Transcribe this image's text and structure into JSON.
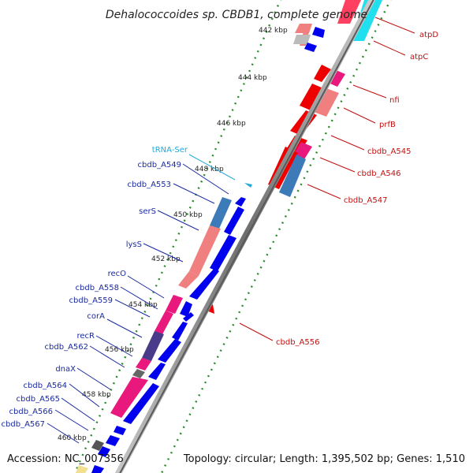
{
  "header": {
    "title": "Dehalococcoides sp. CBDB1, complete genome"
  },
  "footer": {
    "accession": "Accession: NC_007356",
    "topology": "Topology: circular; Length: 1,395,502 bp; Genes: 1,510"
  },
  "colors": {
    "backbone": "#8a8a8a",
    "forward_gene": "#0000ee",
    "reverse_gene": "#ee0000",
    "rna_gene": "#20d0e8",
    "tick": "#2a8a2a",
    "label_forward": "#1a2aa0",
    "label_reverse": "#c01010",
    "label_rna": "#24a8d8"
  },
  "ticks": [
    {
      "label": "442 kbp"
    },
    {
      "label": "444 kbp"
    },
    {
      "label": "446 kbp"
    },
    {
      "label": "448 kbp"
    },
    {
      "label": "450 kbp"
    },
    {
      "label": "452 kbp"
    },
    {
      "label": "454 kbp"
    },
    {
      "label": "456 kbp"
    },
    {
      "label": "458 kbp"
    },
    {
      "label": "460 kbp"
    }
  ],
  "labels_left": [
    {
      "text": "tRNA-Ser"
    },
    {
      "text": "cbdb_A549"
    },
    {
      "text": "cbdb_A553"
    },
    {
      "text": "serS"
    },
    {
      "text": "lysS"
    },
    {
      "text": "recO"
    },
    {
      "text": "cbdb_A558"
    },
    {
      "text": "cbdb_A559"
    },
    {
      "text": "corA"
    },
    {
      "text": "recR"
    },
    {
      "text": "cbdb_A562"
    },
    {
      "text": "dnaX"
    },
    {
      "text": "cbdb_A564"
    },
    {
      "text": "cbdb_A565"
    },
    {
      "text": "cbdb_A566"
    },
    {
      "text": "cbdb_A567"
    }
  ],
  "labels_right": [
    {
      "text": "atpD"
    },
    {
      "text": "atpC"
    },
    {
      "text": "nfi"
    },
    {
      "text": "prfB"
    },
    {
      "text": "cbdb_A545"
    },
    {
      "text": "cbdb_A546"
    },
    {
      "text": "cbdb_A547"
    },
    {
      "text": "cbdb_A556"
    }
  ]
}
